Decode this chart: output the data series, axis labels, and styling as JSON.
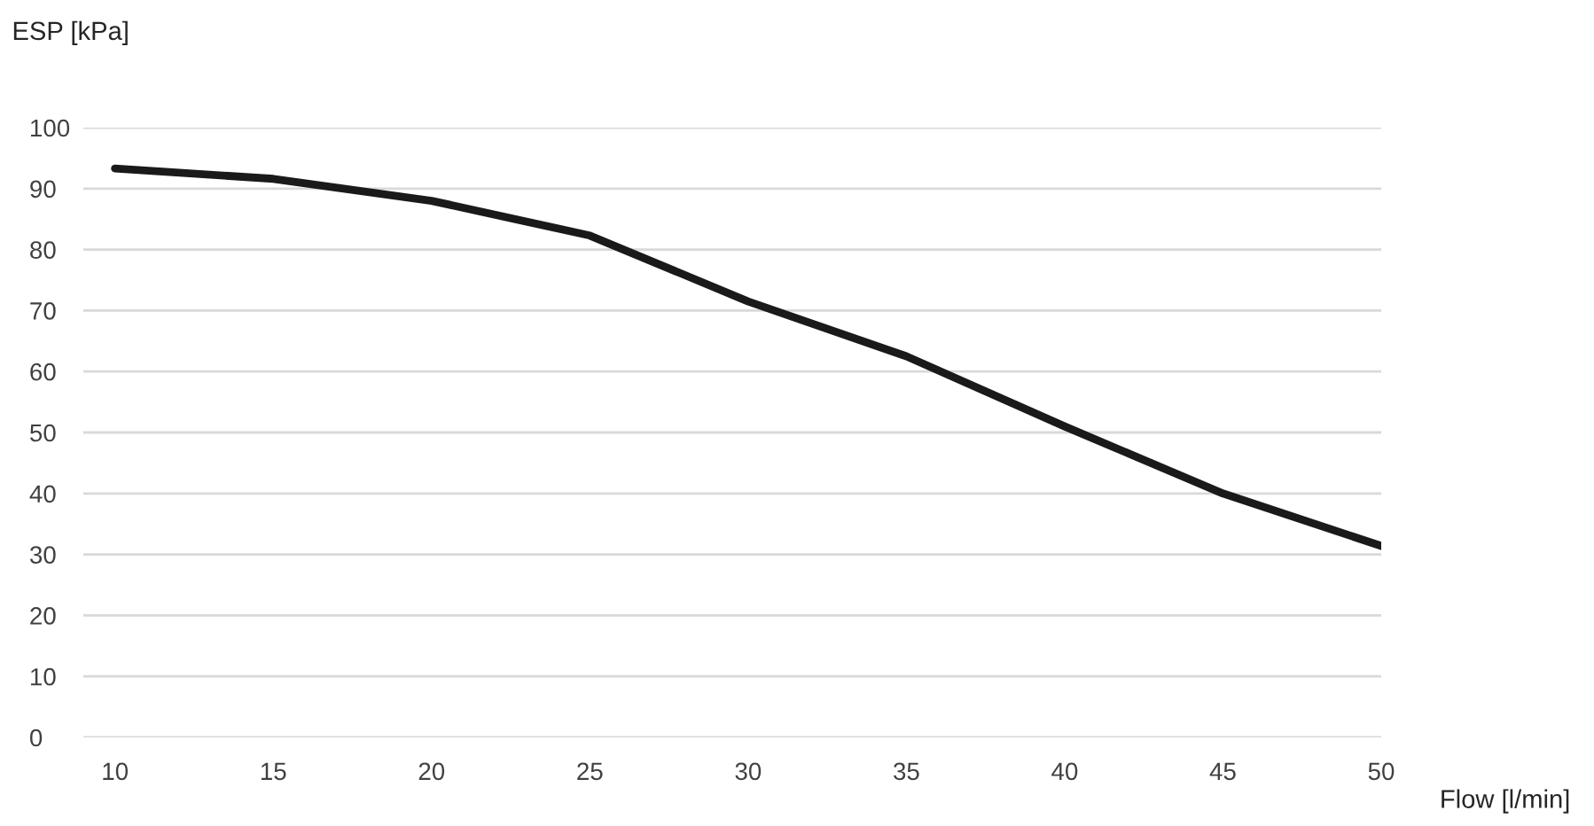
{
  "chart_data": {
    "type": "line",
    "xlabel": "Flow [l/min]",
    "ylabel": "ESP [kPa]",
    "x": [
      10,
      15,
      20,
      25,
      30,
      35,
      40,
      45,
      50
    ],
    "series": [
      {
        "color": "#1a1a1a",
        "values": [
          93.3,
          91.6,
          88,
          82.3,
          71.5,
          62.5,
          51,
          40,
          31.4
        ]
      }
    ],
    "xlim": [
      9,
      50
    ],
    "xticks": [
      10,
      15,
      20,
      25,
      30,
      35,
      40,
      45,
      50
    ],
    "ylim": [
      0,
      100
    ],
    "yticks": [
      0,
      10,
      20,
      30,
      40,
      50,
      60,
      70,
      80,
      90,
      100
    ],
    "grid": "y",
    "legend": false,
    "marker": "none",
    "line_style": "solid"
  }
}
